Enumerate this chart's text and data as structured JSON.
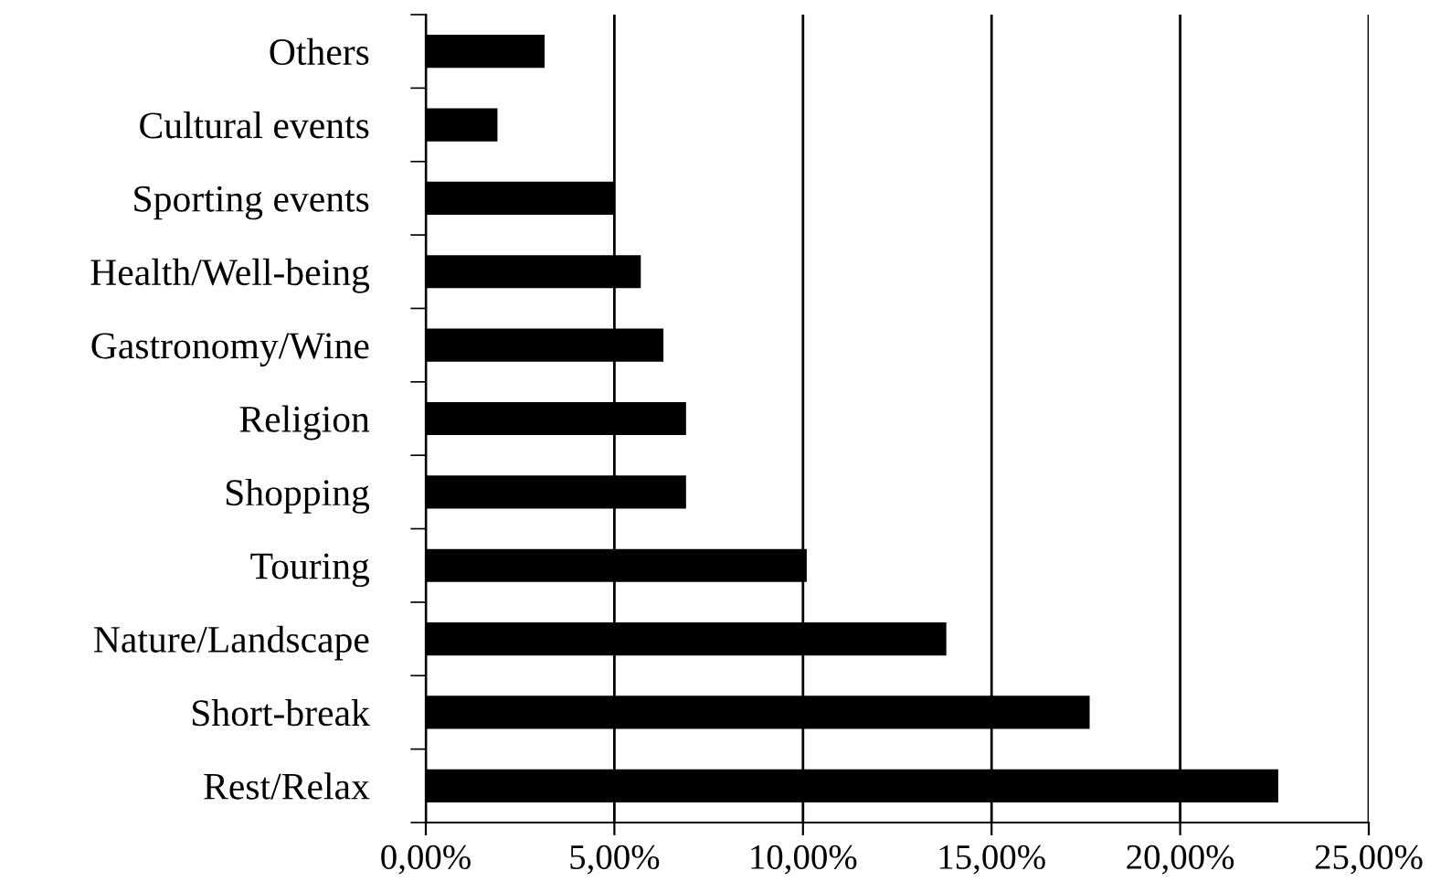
{
  "chart_data": {
    "type": "bar",
    "orientation": "horizontal",
    "categories": [
      "Others",
      "Cultural events",
      "Sporting events",
      "Health/Well-being",
      "Gastronomy/Wine",
      "Religion",
      "Shopping",
      "Touring",
      "Nature/Landscape",
      "Short-break",
      "Rest/Relax"
    ],
    "values": [
      3.15,
      1.9,
      5.0,
      5.7,
      6.3,
      6.9,
      6.9,
      10.1,
      13.8,
      17.6,
      22.6
    ],
    "color": "#000000",
    "xlim": [
      0,
      25
    ],
    "xticks": [
      {
        "value": 0,
        "label": "0,00%"
      },
      {
        "value": 5,
        "label": "5,00%"
      },
      {
        "value": 10,
        "label": "10,00%"
      },
      {
        "value": 15,
        "label": "15,00%"
      },
      {
        "value": 20,
        "label": "20,00%"
      },
      {
        "value": 25,
        "label": "25,00%"
      }
    ],
    "grid": "x",
    "legend": false
  }
}
